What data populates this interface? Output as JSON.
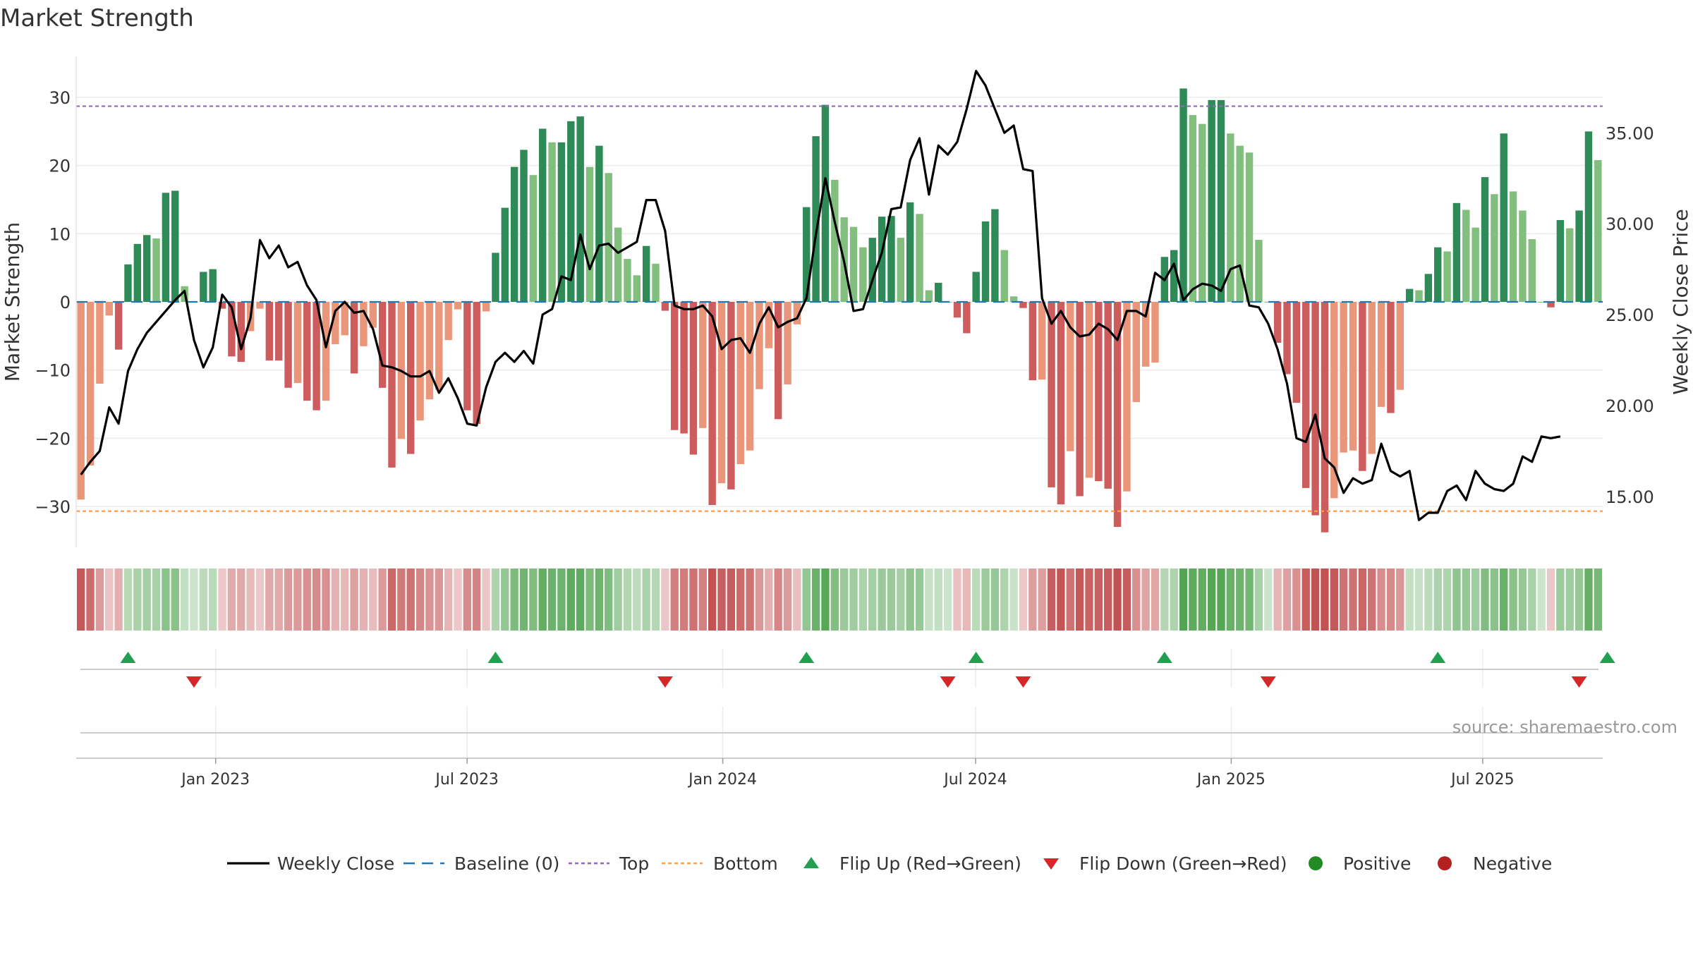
{
  "chart_data": {
    "type": "bar+line",
    "title": "Market Strength",
    "ylabel_left": "Market Strength",
    "ylabel_right": "Weekly Close Price",
    "ylim_left": [
      -36,
      36
    ],
    "yticks_left": [
      30,
      20,
      10,
      0,
      -10,
      -20,
      -30
    ],
    "ytick_labels_left": [
      "30",
      "20",
      "10",
      "0",
      "−10",
      "−20",
      "−30"
    ],
    "ylim_right": [
      12.2,
      39.2
    ],
    "yticks_right": [
      35,
      30,
      25,
      20,
      15
    ],
    "ytick_labels_right": [
      "35.00",
      "30.00",
      "25.00",
      "20.00",
      "15.00"
    ],
    "x_start": "2022-09-26",
    "x_end": "2025-09-22",
    "x_ticks": [
      {
        "date": "2023-01-01",
        "label": "Jan 2023"
      },
      {
        "date": "2023-07-01",
        "label": "Jul 2023"
      },
      {
        "date": "2024-01-01",
        "label": "Jan 2024"
      },
      {
        "date": "2024-07-01",
        "label": "Jul 2024"
      },
      {
        "date": "2025-01-01",
        "label": "Jan 2025"
      },
      {
        "date": "2025-07-01",
        "label": "Jul 2025"
      }
    ],
    "reference_lines": {
      "baseline": 0,
      "top": 28.7,
      "bottom": -30.7
    },
    "strength": [
      -29,
      -24,
      -12,
      -2,
      -7,
      5.5,
      8.5,
      9.8,
      9.3,
      16,
      16.3,
      2.3,
      0,
      4.4,
      4.8,
      -1,
      -8,
      -8.8,
      -4.3,
      -1,
      -8.6,
      -8.6,
      -12.6,
      -11.9,
      -14.5,
      -15.9,
      -14.5,
      -6.2,
      -4.9,
      -10.5,
      -6.5,
      -3.8,
      -12.6,
      -24.3,
      -20.1,
      -22.3,
      -17.4,
      -14.3,
      -12.9,
      -5.6,
      -1.1,
      -15.9,
      -17.9,
      -1.4,
      7.2,
      13.8,
      19.8,
      22.3,
      18.6,
      25.4,
      23.4,
      23.4,
      26.5,
      27.2,
      19.8,
      22.9,
      18.9,
      10.9,
      6.3,
      3.9,
      8.2,
      5.6,
      -1.3,
      -18.8,
      -19.3,
      -22.4,
      -18.5,
      -29.8,
      -26.6,
      -27.5,
      -23.8,
      -21.8,
      -12.8,
      -6.8,
      -17.2,
      -12.1,
      -3.3,
      13.9,
      24.3,
      28.9,
      17.9,
      12.4,
      11,
      8,
      9.4,
      12.5,
      12.6,
      9.4,
      14.6,
      12.9,
      1.7,
      2.8,
      0,
      -2.3,
      -4.6,
      4.4,
      11.8,
      13.6,
      7.6,
      0.8,
      -0.9,
      -11.5,
      -11.4,
      -27.2,
      -29.7,
      -21.9,
      -28.5,
      -25.8,
      -26.3,
      -27.4,
      -33,
      -27.8,
      -14.7,
      -9.5,
      -8.9,
      6.6,
      7.6,
      31.3,
      27.4,
      26.1,
      29.6,
      29.6,
      24.7,
      22.9,
      21.9,
      9.1,
      0,
      -6,
      -10.6,
      -14.8,
      -27.3,
      -31.3,
      -33.8,
      -28.8,
      -22.1,
      -21.8,
      -24.8,
      -22.3,
      -15.4,
      -16.3,
      -12.9,
      1.9,
      1.7,
      4.1,
      8,
      7.4,
      14.5,
      13.5,
      10.9,
      18.3,
      15.8,
      24.7,
      16.2,
      13.4,
      9.2,
      0,
      -0.8,
      12,
      10.8,
      13.4,
      25,
      20.8
    ],
    "weekly_close": [
      16.2,
      16.9,
      17.5,
      19.9,
      19,
      21.9,
      23.1,
      24,
      24.6,
      25.2,
      25.8,
      26.3,
      23.6,
      22.1,
      23.2,
      26.1,
      25.4,
      23.1,
      24.8,
      29.1,
      28.1,
      28.8,
      27.6,
      27.9,
      26.6,
      25.8,
      23.2,
      25.2,
      25.7,
      25.1,
      25.2,
      24.2,
      22.2,
      22.1,
      21.9,
      21.6,
      21.6,
      21.9,
      20.7,
      21.5,
      20.4,
      19,
      18.9,
      21,
      22.4,
      22.9,
      22.4,
      23,
      22.3,
      25,
      25.3,
      27.1,
      26.9,
      29.4,
      27.5,
      28.8,
      28.9,
      28.4,
      28.7,
      29,
      31.3,
      31.3,
      29.6,
      25.5,
      25.3,
      25.3,
      25.5,
      24.9,
      23.1,
      23.6,
      23.7,
      22.9,
      24.5,
      25.4,
      24.3,
      24.6,
      24.8,
      25.9,
      29.4,
      32.5,
      30.1,
      27.9,
      25.2,
      25.3,
      26.9,
      28.4,
      30.8,
      30.9,
      33.5,
      34.7,
      31.6,
      34.3,
      33.8,
      34.5,
      36.3,
      38.4,
      37.6,
      36.3,
      35,
      35.4,
      33,
      32.9,
      25.9,
      24.5,
      25.2,
      24.3,
      23.8,
      23.9,
      24.5,
      24.2,
      23.6,
      25.2,
      25.2,
      24.9,
      27.3,
      26.9,
      27.8,
      25.8,
      26.4,
      26.7,
      26.6,
      26.3,
      27.5,
      27.7,
      25.5,
      25.4,
      24.5,
      23.1,
      21.2,
      18.2,
      18,
      19.5,
      17.1,
      16.6,
      15.2,
      16,
      15.7,
      15.9,
      17.9,
      16.4,
      16.1,
      16.4,
      13.7,
      14.1,
      14.1,
      15.3,
      15.6,
      14.8,
      16.4,
      15.7,
      15.4,
      15.3,
      15.7,
      17.2,
      16.9,
      18.3,
      18.2,
      18.3
    ],
    "flips_up": [
      5,
      44,
      77,
      95,
      115,
      144,
      162
    ],
    "flips_down": [
      12,
      62,
      92,
      100,
      126,
      159
    ],
    "colors": {
      "positive_strong": "#2e8b57",
      "positive_light": "#82bf7e",
      "negative_strong": "#cd5c5c",
      "negative_light": "#e9967a",
      "weekly_close": "#000000",
      "baseline": "#1f77b4",
      "top": "#9467bd",
      "bottom": "#ff9f4a",
      "flip_up": "#20a050",
      "flip_down": "#d62728",
      "positive_dot": "#228b22",
      "negative_dot": "#b22222"
    },
    "legend": [
      {
        "key": "line",
        "label": "Weekly Close"
      },
      {
        "key": "baseline",
        "label": "Baseline (0)"
      },
      {
        "key": "top",
        "label": "Top"
      },
      {
        "key": "bottom",
        "label": "Bottom"
      },
      {
        "key": "flip_up",
        "label": "Flip Up (Red→Green)"
      },
      {
        "key": "flip_down",
        "label": "Flip Down (Green→Red)"
      },
      {
        "key": "positive",
        "label": "Positive"
      },
      {
        "key": "negative",
        "label": "Negative"
      }
    ],
    "legend_position": "bottom-center",
    "source": "source: sharemaestro.com"
  }
}
